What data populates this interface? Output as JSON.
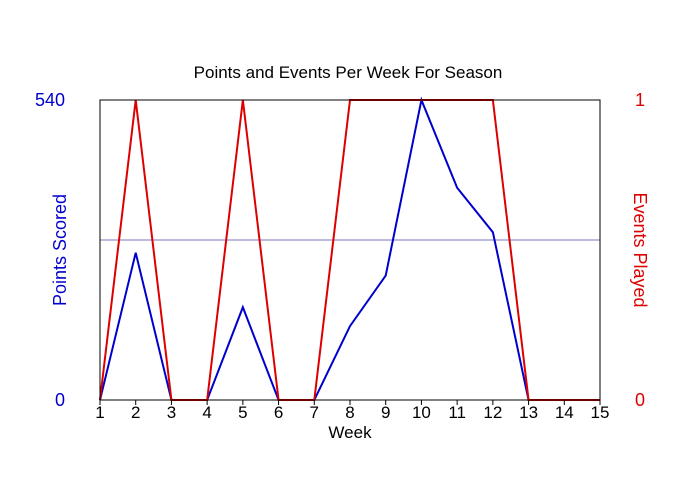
{
  "chart_data": {
    "type": "line",
    "title": "Points and Events Per Week For Season",
    "xlabel": "Week",
    "x": [
      1,
      2,
      3,
      4,
      5,
      6,
      7,
      8,
      9,
      10,
      11,
      12,
      13,
      14,
      15
    ],
    "x_tick_labels": [
      "1",
      "2",
      "3",
      "4",
      "5",
      "6",
      "7",
      "8",
      "9",
      "10",
      "11",
      "12",
      "13",
      "14",
      "15"
    ],
    "y_left": {
      "label": "Points Scored",
      "range": [
        0,
        540
      ],
      "tick_labels": [
        "0",
        "540"
      ],
      "color": "#0000cc"
    },
    "y_right": {
      "label": "Events Played",
      "range": [
        0,
        1
      ],
      "tick_labels": [
        "0",
        "1"
      ],
      "color": "#dd0000"
    },
    "reference_line": {
      "value": 288,
      "axis": "left",
      "color": "#7777bb"
    },
    "series": [
      {
        "axis": "left",
        "color": "#0000cc",
        "values": [
          0,
          265,
          0,
          0,
          167,
          0,
          0,
          133,
          224,
          540,
          382,
          302,
          0,
          0,
          0
        ]
      },
      {
        "axis": "right",
        "color": "#dd0000",
        "values": [
          0,
          1,
          0,
          0,
          1,
          0,
          0,
          1,
          1,
          1,
          1,
          1,
          0,
          0,
          0
        ]
      }
    ]
  }
}
